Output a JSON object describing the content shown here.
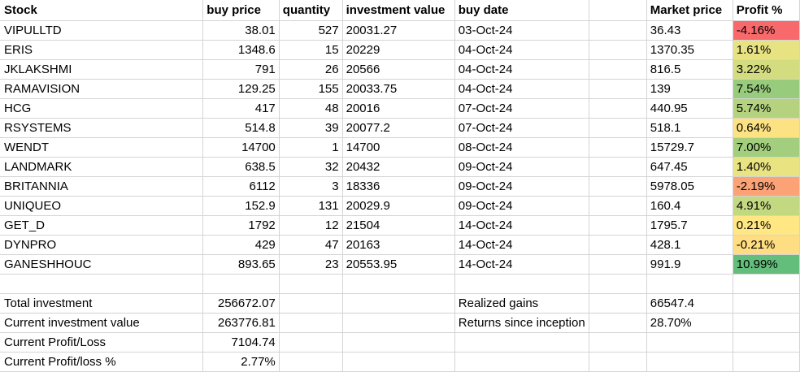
{
  "headers": [
    "Stock",
    "buy price",
    "quantity",
    "investment value",
    "buy date",
    "",
    "Market price",
    "Profit %"
  ],
  "rows": [
    {
      "stock": "VIPULLTD",
      "buy_price": "38.01",
      "quantity": "527",
      "investment_value": "20031.27",
      "buy_date": "03-Oct-24",
      "market_price": "36.43",
      "profit_pct": "-4.16%",
      "profit_color": "#f8696b"
    },
    {
      "stock": "ERIS",
      "buy_price": "1348.6",
      "quantity": "15",
      "investment_value": "20229",
      "buy_date": "04-Oct-24",
      "market_price": "1370.35",
      "profit_pct": "1.61%",
      "profit_color": "#e7e382"
    },
    {
      "stock": "JKLAKSHMI",
      "buy_price": "791",
      "quantity": "26",
      "investment_value": "20566",
      "buy_date": "04-Oct-24",
      "market_price": "816.5",
      "profit_pct": "3.22%",
      "profit_color": "#d3dc7f"
    },
    {
      "stock": "RAMAVISION",
      "buy_price": "129.25",
      "quantity": "155",
      "investment_value": "20033.75",
      "buy_date": "04-Oct-24",
      "market_price": "139",
      "profit_pct": "7.54%",
      "profit_color": "#98cb7b"
    },
    {
      "stock": "HCG",
      "buy_price": "417",
      "quantity": "48",
      "investment_value": "20016",
      "buy_date": "07-Oct-24",
      "market_price": "440.95",
      "profit_pct": "5.74%",
      "profit_color": "#b5d27f"
    },
    {
      "stock": "RSYSTEMS",
      "buy_price": "514.8",
      "quantity": "39",
      "investment_value": "20077.2",
      "buy_date": "07-Oct-24",
      "market_price": "518.1",
      "profit_pct": "0.64%",
      "profit_color": "#fce282"
    },
    {
      "stock": "WENDT",
      "buy_price": "14700",
      "quantity": "1",
      "investment_value": "14700",
      "buy_date": "08-Oct-24",
      "market_price": "15729.7",
      "profit_pct": "7.00%",
      "profit_color": "#a2ce7d"
    },
    {
      "stock": "LANDMARK",
      "buy_price": "638.5",
      "quantity": "32",
      "investment_value": "20432",
      "buy_date": "09-Oct-24",
      "market_price": "647.45",
      "profit_pct": "1.40%",
      "profit_color": "#e9e382"
    },
    {
      "stock": "BRITANNIA",
      "buy_price": "6112",
      "quantity": "3",
      "investment_value": "18336",
      "buy_date": "09-Oct-24",
      "market_price": "5978.05",
      "profit_pct": "-2.19%",
      "profit_color": "#fba276"
    },
    {
      "stock": "UNIQUEO",
      "buy_price": "152.9",
      "quantity": "131",
      "investment_value": "20029.9",
      "buy_date": "09-Oct-24",
      "market_price": "160.4",
      "profit_pct": "4.91%",
      "profit_color": "#c3d981"
    },
    {
      "stock": "GET_D",
      "buy_price": "1792",
      "quantity": "12",
      "investment_value": "21504",
      "buy_date": "14-Oct-24",
      "market_price": "1795.7",
      "profit_pct": "0.21%",
      "profit_color": "#ffe784"
    },
    {
      "stock": "DYNPRO",
      "buy_price": "429",
      "quantity": "47",
      "investment_value": "20163",
      "buy_date": "14-Oct-24",
      "market_price": "428.1",
      "profit_pct": "-0.21%",
      "profit_color": "#ffdd82"
    },
    {
      "stock": "GANESHHOUC",
      "buy_price": "893.65",
      "quantity": "23",
      "investment_value": "20553.95",
      "buy_date": "14-Oct-24",
      "market_price": "991.9",
      "profit_pct": "10.99%",
      "profit_color": "#63be7b"
    }
  ],
  "summary": {
    "total_investment_label": "Total investment",
    "total_investment_value": "256672.07",
    "current_investment_value_label": "Current investment value",
    "current_investment_value_value": "263776.81",
    "current_profit_loss_label": "Current Profit/Loss",
    "current_profit_loss_value": "7104.74",
    "current_profit_loss_pct_label": "Current Profit/loss %",
    "current_profit_loss_pct_value": "2.77%",
    "realized_gains_label": "Realized gains",
    "realized_gains_value": "66547.4",
    "returns_since_inception_label": "Returns since inception",
    "returns_since_inception_value": "28.70%"
  },
  "colors": {
    "gridline": "#d4d4d4",
    "negative_high": "#f8696b",
    "neutral": "#ffeb84",
    "positive_high": "#63be7b"
  }
}
